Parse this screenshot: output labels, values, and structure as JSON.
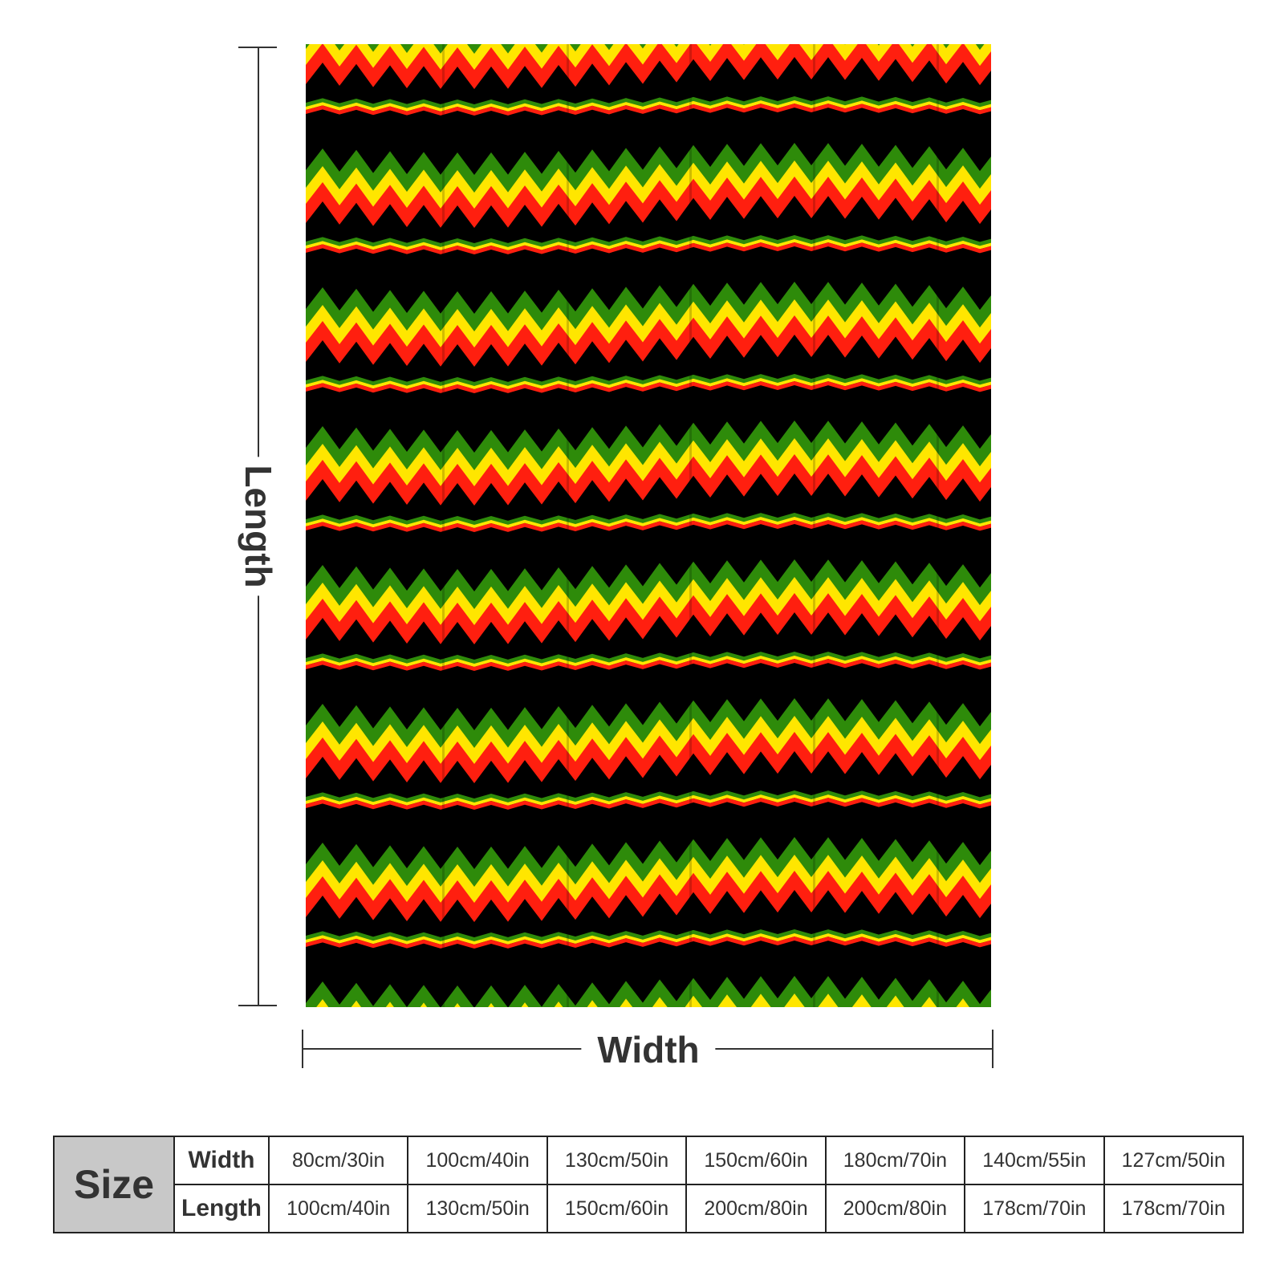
{
  "product": {
    "colors": {
      "background": "#000000",
      "green": "#2e8b0a",
      "yellow": "#ffe600",
      "red": "#ff1f0f"
    }
  },
  "dimensions": {
    "length_label": "Length",
    "width_label": "Width"
  },
  "size_table": {
    "header": "Size",
    "row_labels": [
      "Width",
      "Length"
    ],
    "widths": [
      "80cm/30in",
      "100cm/40in",
      "130cm/50in",
      "150cm/60in",
      "180cm/70in",
      "140cm/55in",
      "127cm/50in"
    ],
    "lengths": [
      "100cm/40in",
      "130cm/50in",
      "150cm/60in",
      "200cm/80in",
      "200cm/80in",
      "178cm/70in",
      "178cm/70in"
    ]
  }
}
